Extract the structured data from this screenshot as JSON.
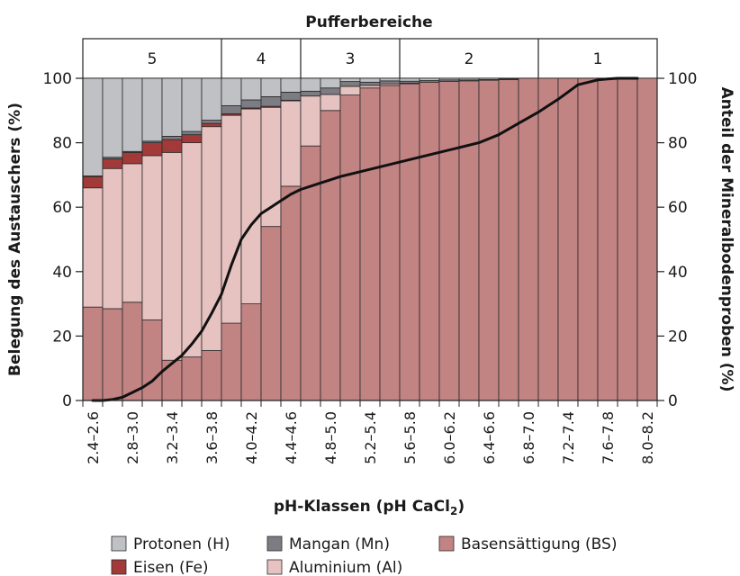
{
  "chart_data": {
    "type": "bar",
    "stacked": true,
    "title": "Pufferbereiche",
    "buffer_zones": [
      {
        "label": "5",
        "from": "2.4",
        "to": "3.8"
      },
      {
        "label": "4",
        "from": "3.8",
        "to": "4.6"
      },
      {
        "label": "3",
        "from": "4.6",
        "to": "5.6"
      },
      {
        "label": "2",
        "from": "5.6",
        "to": "7.0"
      },
      {
        "label": "1",
        "from": "7.0",
        "to": "8.2"
      }
    ],
    "xlabel_main": "pH-Klassen (pH CaCl",
    "xlabel_sub": "2",
    "xlabel_end": ")",
    "ylabel_left": "Belegung des Austauschers (%)",
    "ylabel_right": "Anteil der Mineralbodenproben (%)",
    "ylim": [
      0,
      100
    ],
    "yticks": [
      "0",
      "20",
      "40",
      "60",
      "80",
      "100"
    ],
    "categories": [
      "2.4–2.6",
      "2.6–2.8",
      "2.8–3.0",
      "3.0–3.2",
      "3.2–3.4",
      "3.4–3.6",
      "3.6–3.8",
      "3.8–4.0",
      "4.0–4.2",
      "4.2–4.4",
      "4.4–4.6",
      "4.6–4.8",
      "4.8–5.0",
      "5.0–5.2",
      "5.2–5.4",
      "5.4–5.6",
      "5.6–5.8",
      "5.8–6.0",
      "6.0–6.2",
      "6.2–6.4",
      "6.4–6.6",
      "6.6–6.8",
      "6.8–7.0",
      "7.0–7.2",
      "7.2–7.4",
      "7.4–7.6",
      "7.6–7.8",
      "7.8–8.0",
      "8.0–8.2"
    ],
    "tick_labels": [
      "2.4–2.6",
      "2.8–3.0",
      "3.2–3.4",
      "3.6–3.8",
      "4.0–4.2",
      "4.4–4.6",
      "4.8–5.0",
      "5.2–5.4",
      "5.6–5.8",
      "6.0–6.2",
      "6.4–6.6",
      "6.8–7.0",
      "7.2–7.4",
      "7.6–7.8",
      "8.0–8.2"
    ],
    "series": [
      {
        "name": "Basensättigung (BS)",
        "key": "bs",
        "color": "#c28383",
        "values": [
          29,
          28.5,
          30.5,
          25,
          12.5,
          13.5,
          15.5,
          24,
          30,
          54,
          66.5,
          79,
          90,
          94.8,
          97,
          97.8,
          98.3,
          98.8,
          99,
          99.2,
          99.4,
          99.6,
          100,
          100,
          100,
          100,
          100,
          100,
          100
        ]
      },
      {
        "name": "Aluminium (Al)",
        "key": "al",
        "color": "#e6c2c0",
        "values": [
          37,
          43.5,
          43,
          51,
          64.5,
          66.5,
          69.5,
          64.5,
          60.5,
          37,
          26.5,
          15.5,
          5,
          2.7,
          0.8,
          0.5,
          0.2,
          0,
          0,
          0,
          0,
          0,
          0,
          0,
          0,
          0,
          0,
          0,
          0
        ]
      },
      {
        "name": "Eisen (Fe)",
        "key": "fe",
        "color": "#a23a3a",
        "values": [
          3.5,
          3,
          3.5,
          4,
          4,
          2.5,
          1,
          0.5,
          0.3,
          0.3,
          0.2,
          0,
          0,
          0,
          0,
          0,
          0,
          0,
          0,
          0,
          0,
          0,
          0,
          0,
          0,
          0,
          0,
          0,
          0
        ]
      },
      {
        "name": "Mangan (Mn)",
        "key": "mn",
        "color": "#7d7c83",
        "values": [
          0.2,
          0.5,
          0.3,
          0.5,
          1,
          1,
          1,
          2.5,
          2.5,
          3,
          2.5,
          1.5,
          2,
          1.5,
          1,
          0.9,
          0.6,
          0.5,
          0.5,
          0.3,
          0.2,
          0.2,
          0,
          0,
          0,
          0,
          0,
          0,
          0
        ]
      },
      {
        "name": "Protonen (H)",
        "key": "h",
        "color": "#bfc1c5",
        "values": [
          30.3,
          24.5,
          22.7,
          19.5,
          18,
          16.5,
          13,
          8.5,
          6.7,
          5.7,
          4.3,
          4,
          3,
          1,
          1.2,
          0.8,
          0.9,
          0.7,
          0.5,
          0.5,
          0.4,
          0.2,
          0,
          0,
          0,
          0,
          0,
          0,
          0
        ]
      }
    ],
    "cumulative_line": {
      "axis": "right",
      "x": [
        2.5,
        2.6,
        2.7,
        2.8,
        2.9,
        3.0,
        3.1,
        3.2,
        3.3,
        3.4,
        3.5,
        3.6,
        3.7,
        3.8,
        3.9,
        4.0,
        4.1,
        4.2,
        4.3,
        4.4,
        4.5,
        4.6,
        4.7,
        4.8,
        4.9,
        5.0,
        5.2,
        5.4,
        5.6,
        5.8,
        6.0,
        6.2,
        6.4,
        6.6,
        6.8,
        7.0,
        7.2,
        7.4,
        7.6,
        7.7,
        7.8,
        7.9,
        8.0
      ],
      "y": [
        0,
        0,
        0.3,
        1,
        2.5,
        4,
        6,
        9,
        11.5,
        14,
        17.5,
        21.5,
        27,
        33,
        42,
        50,
        54.5,
        58,
        60,
        62,
        64,
        65.5,
        66.5,
        67.5,
        68.5,
        69.5,
        71,
        72.5,
        74,
        75.5,
        77,
        78.5,
        80,
        82.5,
        86,
        89.5,
        93.5,
        98,
        99.5,
        99.8,
        100,
        100,
        100
      ]
    },
    "legend": {
      "placement": "bottom",
      "items": [
        {
          "label": "Protonen (H)",
          "key": "h"
        },
        {
          "label": "Mangan (Mn)",
          "key": "mn"
        },
        {
          "label": "Basensättigung (BS)",
          "key": "bs"
        },
        {
          "label": "Eisen (Fe)",
          "key": "fe"
        },
        {
          "label": "Aluminium (Al)",
          "key": "al"
        }
      ]
    },
    "grid": false
  }
}
